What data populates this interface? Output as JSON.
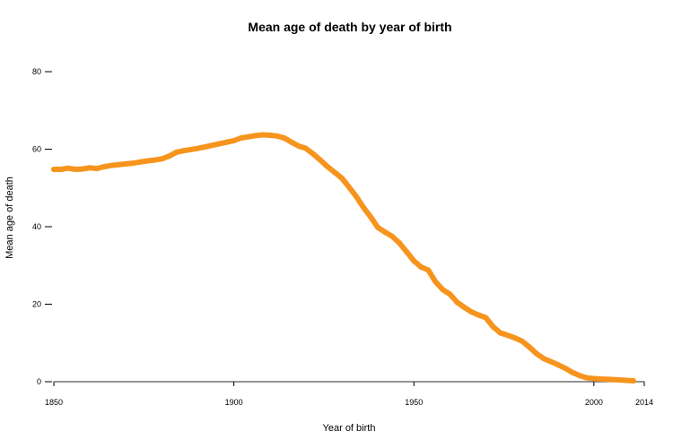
{
  "chart_data": {
    "type": "line",
    "title": "Mean age of death by year of birth",
    "xlabel": "Year of birth",
    "ylabel": "Mean age of death",
    "xlim": [
      1850,
      2014
    ],
    "ylim": [
      0,
      80
    ],
    "x_ticks": [
      1850,
      1900,
      1950,
      2000,
      2014
    ],
    "y_ticks": [
      0,
      20,
      40,
      60,
      80
    ],
    "grid": false,
    "legend": "none",
    "series": [
      {
        "color": "#f7941d",
        "x": [
          1850,
          1852,
          1854,
          1856,
          1858,
          1860,
          1862,
          1864,
          1866,
          1868,
          1870,
          1872,
          1874,
          1876,
          1878,
          1880,
          1882,
          1884,
          1886,
          1888,
          1890,
          1892,
          1894,
          1896,
          1898,
          1900,
          1902,
          1904,
          1906,
          1908,
          1910,
          1912,
          1914,
          1916,
          1918,
          1920,
          1922,
          1924,
          1926,
          1928,
          1930,
          1932,
          1934,
          1936,
          1938,
          1940,
          1942,
          1944,
          1946,
          1948,
          1950,
          1952,
          1954,
          1956,
          1958,
          1960,
          1962,
          1964,
          1966,
          1968,
          1970,
          1972,
          1974,
          1976,
          1978,
          1980,
          1982,
          1984,
          1986,
          1988,
          1990,
          1992,
          1994,
          1996,
          1998,
          2000,
          2002,
          2004,
          2006,
          2008,
          2010,
          2011
        ],
        "values": [
          54.8,
          54.8,
          55.1,
          54.8,
          54.9,
          55.2,
          55.0,
          55.5,
          55.8,
          56.0,
          56.2,
          56.4,
          56.7,
          57.0,
          57.2,
          57.5,
          58.2,
          59.2,
          59.6,
          59.9,
          60.2,
          60.6,
          61.0,
          61.4,
          61.8,
          62.2,
          62.9,
          63.2,
          63.5,
          63.7,
          63.6,
          63.4,
          62.9,
          61.8,
          60.8,
          60.2,
          58.8,
          57.2,
          55.5,
          54.0,
          52.5,
          50.2,
          47.8,
          45.0,
          42.5,
          39.8,
          38.6,
          37.5,
          35.8,
          33.5,
          31.2,
          29.6,
          28.8,
          25.8,
          23.8,
          22.6,
          20.5,
          19.2,
          18.0,
          17.2,
          16.5,
          14.2,
          12.6,
          12.0,
          11.3,
          10.5,
          9.0,
          7.3,
          6.0,
          5.2,
          4.4,
          3.5,
          2.4,
          1.6,
          1.0,
          0.8,
          0.7,
          0.6,
          0.5,
          0.4,
          0.3,
          0.2
        ]
      }
    ]
  }
}
